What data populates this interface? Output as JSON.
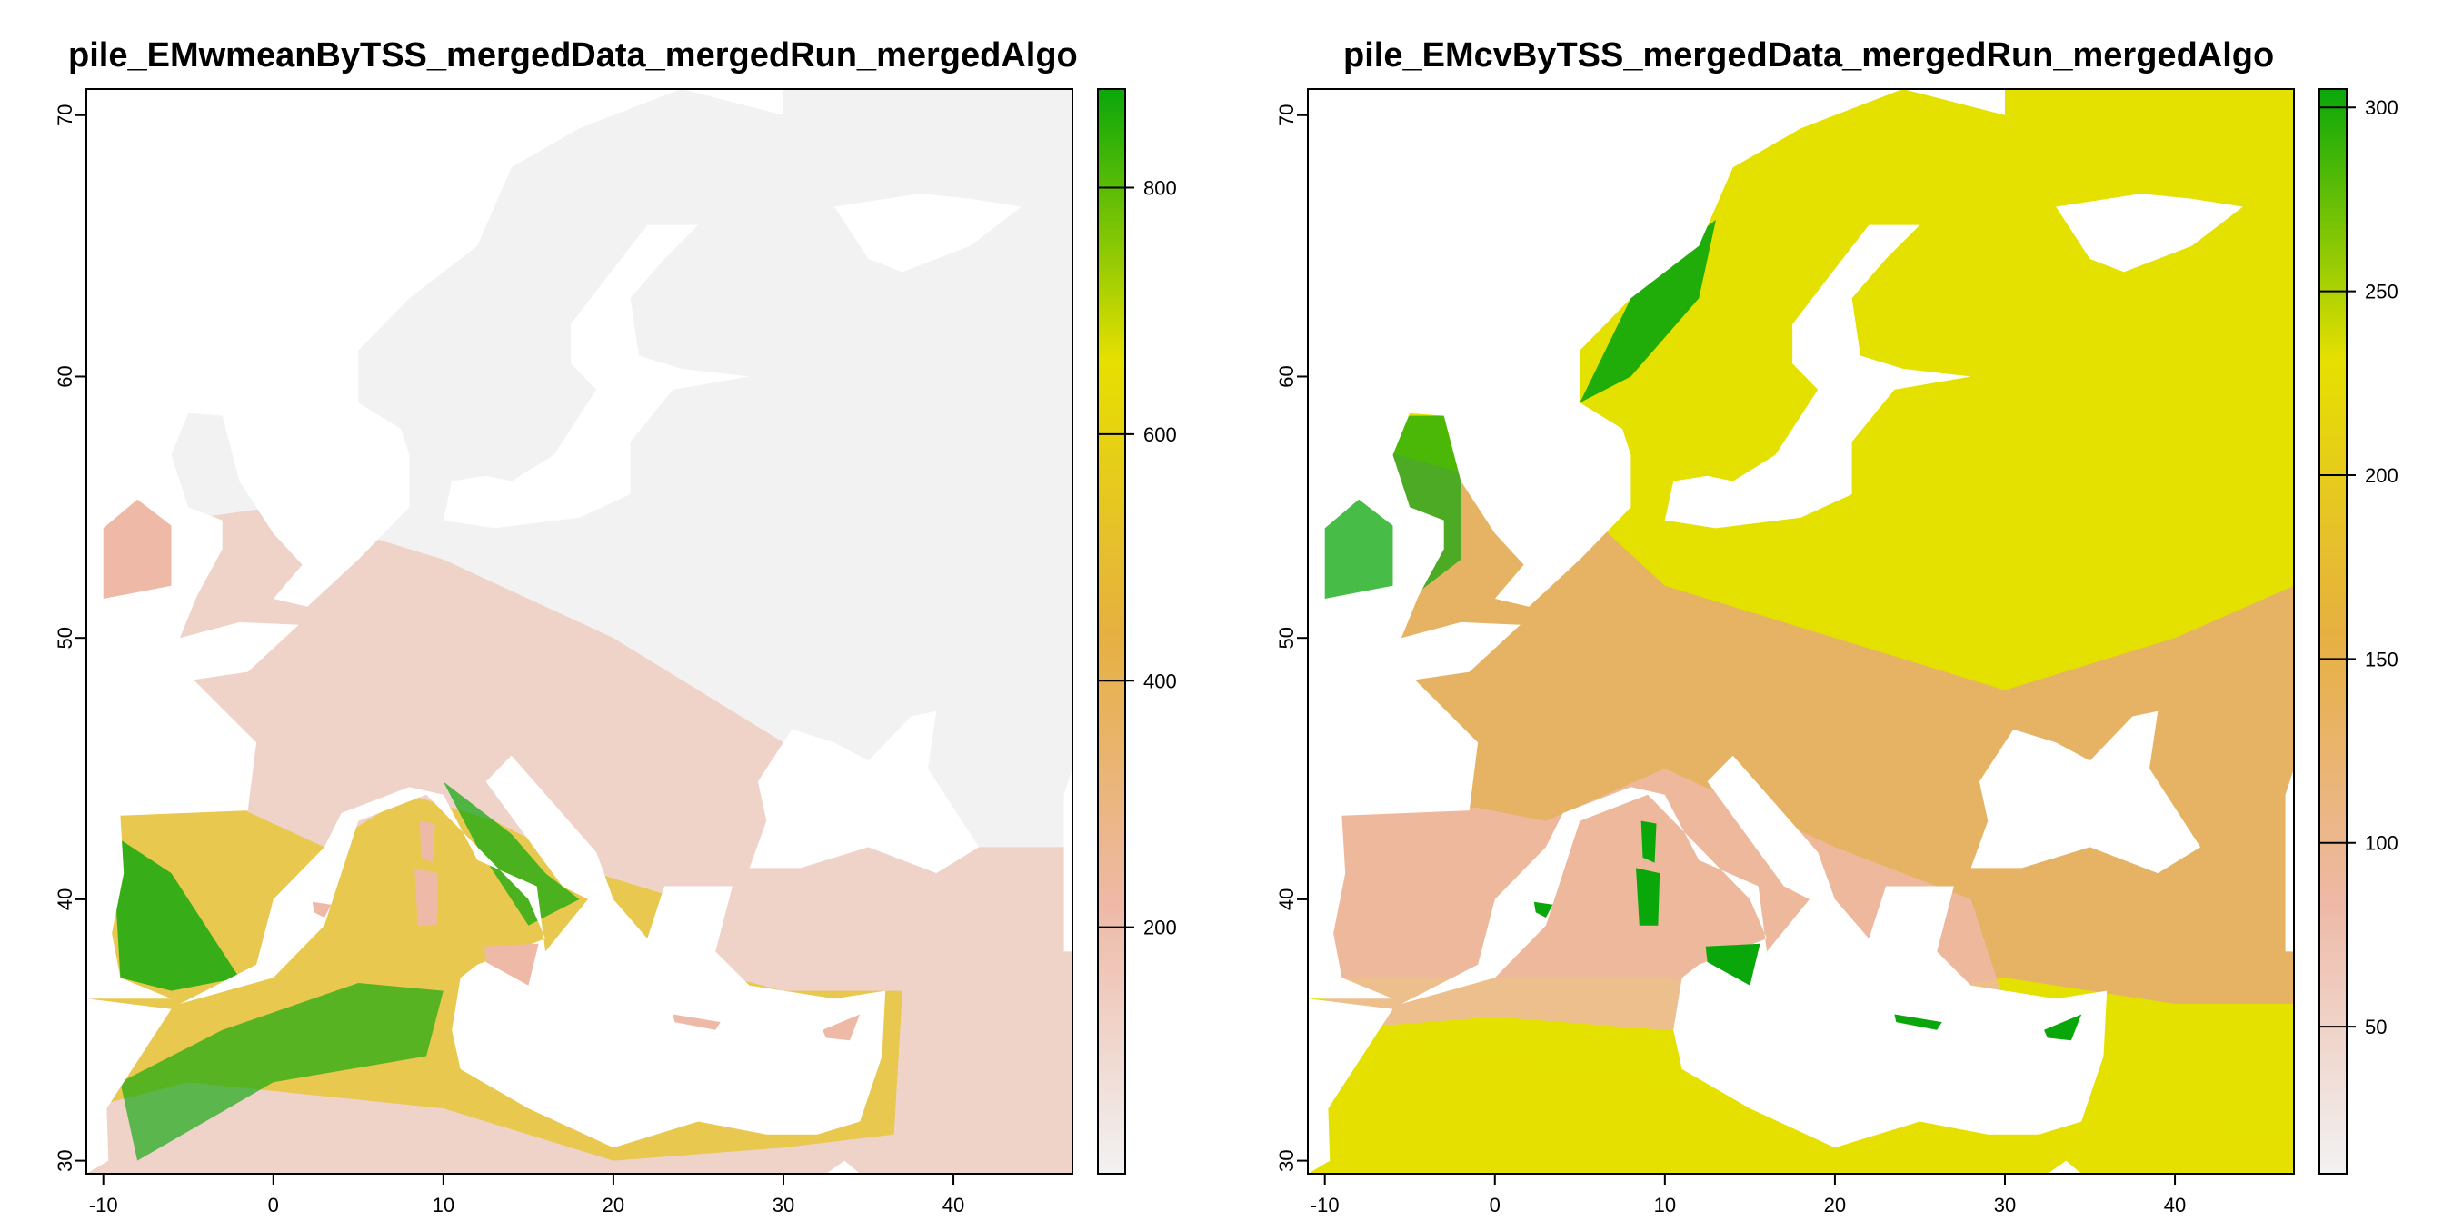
{
  "panels": [
    {
      "title": "pile_EMwmeanByTSS_mergedData_mergedRun_mergedAlgo",
      "x_ticks": [
        "-10",
        "0",
        "10",
        "20",
        "30",
        "40"
      ],
      "y_ticks": [
        "30",
        "40",
        "50",
        "60",
        "70"
      ],
      "legend_ticks": [
        "200",
        "400",
        "600",
        "800"
      ],
      "colors": {
        "background_land": "#f2f2f2",
        "low": "#eeb9a6",
        "mid": "#e6c53a",
        "high": "#0aa70a"
      }
    },
    {
      "title": "pile_EMcvByTSS_mergedData_mergedRun_mergedAlgo",
      "x_ticks": [
        "-10",
        "0",
        "10",
        "20",
        "30",
        "40"
      ],
      "y_ticks": [
        "30",
        "40",
        "50",
        "60",
        "70"
      ],
      "legend_ticks": [
        "50",
        "100",
        "150",
        "200",
        "250",
        "300"
      ],
      "colors": {
        "background_land": "#e4e000",
        "low": "#eeb9a6",
        "mid": "#e6b06a",
        "high": "#0aa70a"
      }
    }
  ],
  "chart_data": [
    {
      "type": "heatmap",
      "title": "pile_EMwmeanByTSS_mergedData_mergedRun_mergedAlgo",
      "xlim": [
        -11,
        47
      ],
      "ylim": [
        29.5,
        71
      ],
      "legend_range": [
        0,
        880
      ],
      "legend_ticks": [
        200,
        400,
        600,
        800
      ],
      "legend_colors": [
        "#f2f2f2",
        "#eeb9a6",
        "#e6b040",
        "#e6e000",
        "#0aa70a"
      ],
      "legend_position": "right"
    },
    {
      "type": "heatmap",
      "title": "pile_EMcvByTSS_mergedData_mergedRun_mergedAlgo",
      "xlim": [
        -11,
        47
      ],
      "ylim": [
        29.5,
        71
      ],
      "legend_range": [
        10,
        305
      ],
      "legend_ticks": [
        50,
        100,
        150,
        200,
        250,
        300
      ],
      "legend_colors": [
        "#f2f2f2",
        "#eeb9a6",
        "#e6b040",
        "#e6e000",
        "#0aa70a"
      ],
      "legend_position": "right"
    }
  ]
}
